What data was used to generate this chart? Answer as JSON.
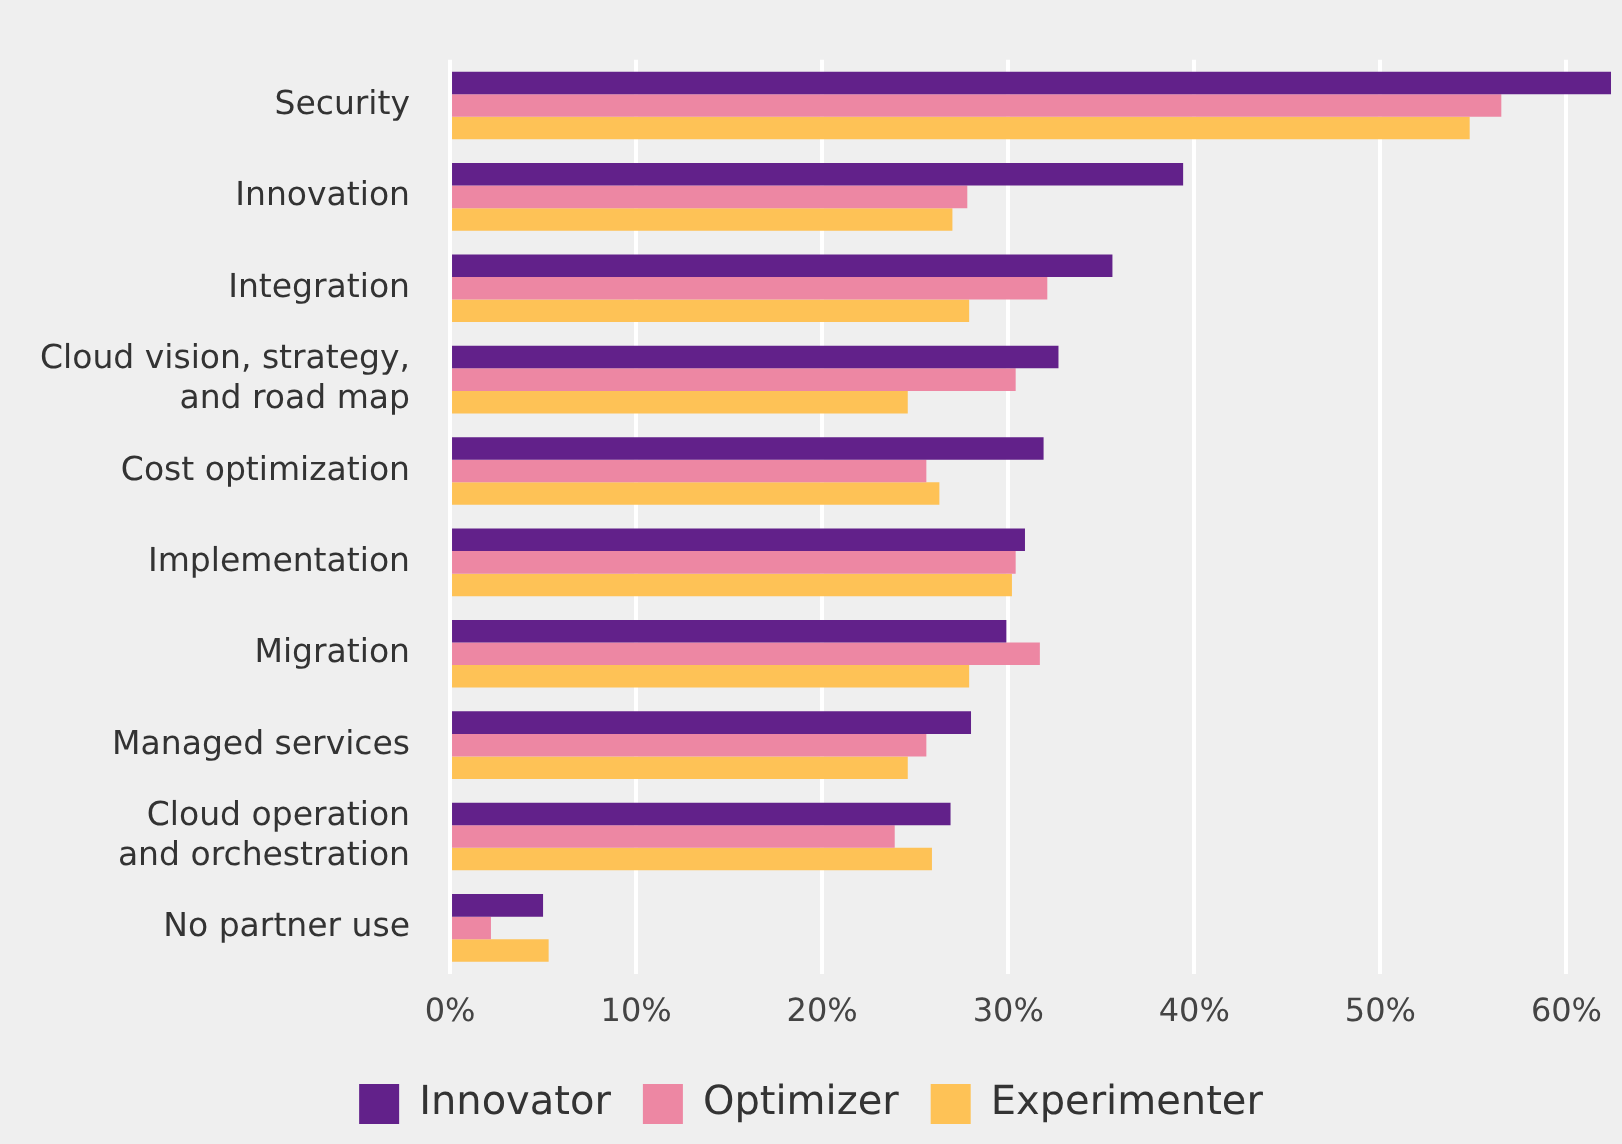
{
  "chart_data": {
    "type": "bar",
    "orientation": "horizontal",
    "categories": [
      "Security",
      "Innovation",
      "Integration",
      "Cloud vision, strategy, and road map",
      "Cost optimization",
      "Implementation",
      "Migration",
      "Managed services",
      "Cloud operation and orchestration",
      "No partner use"
    ],
    "series": [
      {
        "name": "Innovator",
        "color": "#62218a",
        "values": [
          62.4,
          39.4,
          35.6,
          32.7,
          31.9,
          30.9,
          29.9,
          28.0,
          26.9,
          5.0
        ]
      },
      {
        "name": "Optimizer",
        "color": "#ed87a3",
        "values": [
          56.5,
          27.8,
          32.1,
          30.4,
          25.6,
          30.4,
          31.7,
          25.6,
          23.9,
          2.2
        ]
      },
      {
        "name": "Experimenter",
        "color": "#fec256",
        "values": [
          54.8,
          27.0,
          27.9,
          24.6,
          26.3,
          30.2,
          27.9,
          24.6,
          25.9,
          5.3
        ]
      }
    ],
    "xlim": [
      0,
      62.4
    ],
    "xticks": [
      {
        "value": 0,
        "label": "0%"
      },
      {
        "value": 10,
        "label": "10%"
      },
      {
        "value": 20,
        "label": "20%"
      },
      {
        "value": 30,
        "label": "30%"
      },
      {
        "value": 40,
        "label": "40%"
      },
      {
        "value": 50,
        "label": "50%"
      },
      {
        "value": 60,
        "label": "60%"
      }
    ],
    "grid": "x",
    "legend": "bottom"
  }
}
